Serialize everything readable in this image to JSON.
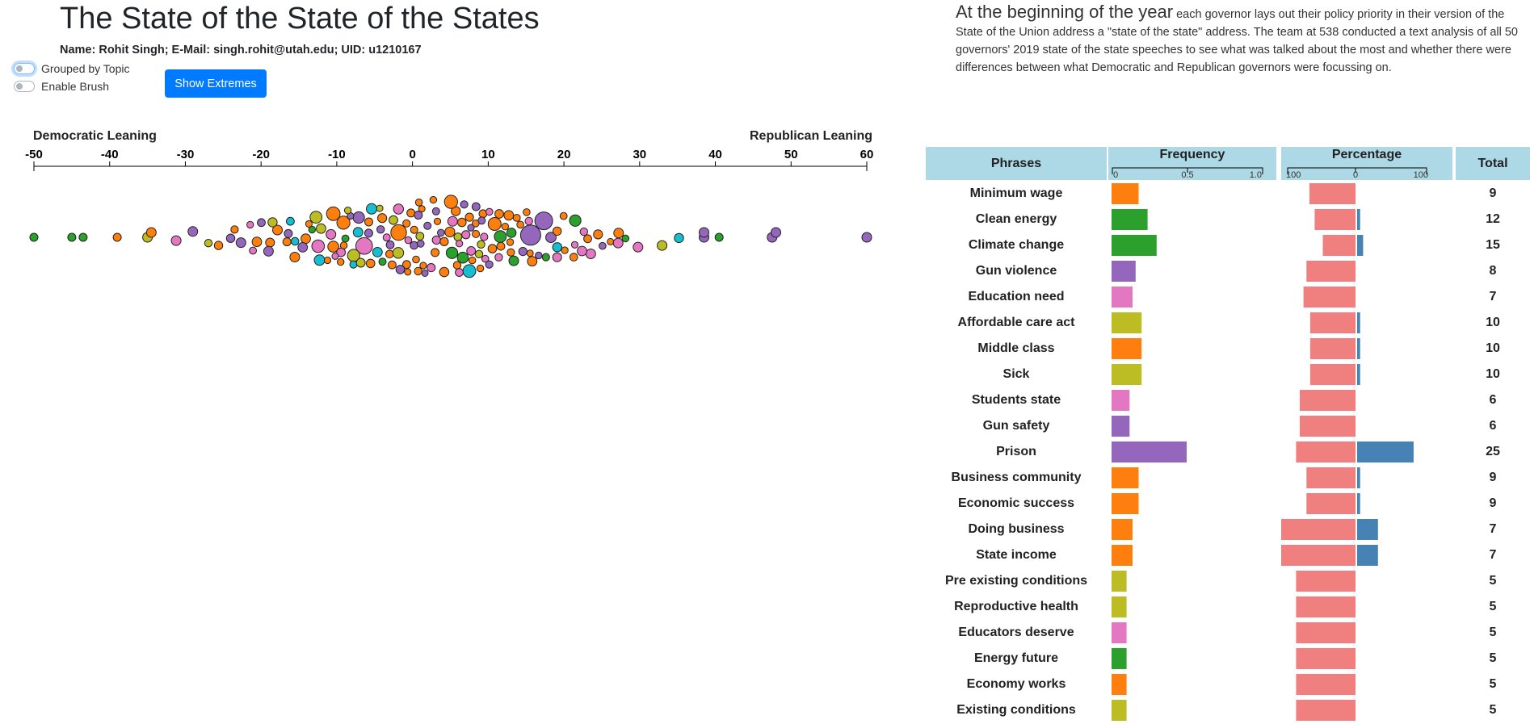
{
  "header": {
    "title": "The State of the State of the States",
    "author": "Name: Rohit Singh; E-Mail: singh.rohit@utah.edu; UID: u1210167"
  },
  "controls": {
    "grouped_label": "Grouped by Topic",
    "brush_label": "Enable Brush",
    "extremes_label": "Show Extremes"
  },
  "intro": {
    "lead": "At the beginning of the year",
    "body": " each governor lays out their policy priority in their version of the State of the Union address a \"state of the state\" address. The team at 538 conducted a text analysis of all 50 governors' 2019 state of the state speeches to see what was talked about the most and whether there were differences between what Democratic and Republican governors were focussing on."
  },
  "colors": {
    "orange": "#ff7f0e",
    "green": "#2ca02c",
    "purple": "#9467bd",
    "pink": "#e377c2",
    "olive": "#bcbd22",
    "cyan": "#17becf",
    "dem_bar": "#f08080",
    "rep_bar": "#4682b4",
    "header_bg": "#add8e6",
    "button": "#007bff"
  },
  "chart_data": [
    {
      "type": "scatter",
      "subtype": "beeswarm",
      "left_label": "Democratic Leaning",
      "right_label": "Republican Leaning",
      "xlim": [
        -50,
        60
      ],
      "ticks": [
        -50,
        -40,
        -30,
        -20,
        -10,
        0,
        10,
        20,
        30,
        40,
        50,
        60
      ],
      "points": [
        {
          "x": -50,
          "category": "green"
        },
        {
          "x": -45,
          "category": "green"
        },
        {
          "x": -43.5,
          "category": "green"
        },
        {
          "x": -39,
          "category": "orange"
        },
        {
          "x": -35,
          "category": "olive"
        },
        {
          "x": -34.5,
          "category": "orange"
        },
        {
          "x": 38.5,
          "category": "purple"
        },
        {
          "x": 38.5,
          "category": "purple"
        },
        {
          "x": 40.5,
          "category": "green"
        },
        {
          "x": 47.5,
          "category": "purple"
        },
        {
          "x": 48,
          "category": "purple"
        },
        {
          "x": 60,
          "category": "purple"
        }
      ]
    },
    {
      "type": "bar",
      "subtype": "table",
      "columns": [
        "Phrases",
        "Frequency",
        "Percentage",
        "Total"
      ],
      "frequency_ticks": [
        "0",
        "0.5",
        "1.0"
      ],
      "percentage_ticks": [
        "100",
        "0",
        "100"
      ],
      "rows": [
        {
          "phrase": "Minimum wage",
          "category": "orange",
          "frequency": 0.18,
          "dem_pct": 62,
          "rep_pct": 0,
          "total": 9
        },
        {
          "phrase": "Clean energy",
          "category": "green",
          "frequency": 0.24,
          "dem_pct": 55,
          "rep_pct": 4,
          "total": 12
        },
        {
          "phrase": "Climate change",
          "category": "green",
          "frequency": 0.3,
          "dem_pct": 44,
          "rep_pct": 8,
          "total": 15
        },
        {
          "phrase": "Gun violence",
          "category": "purple",
          "frequency": 0.16,
          "dem_pct": 66,
          "rep_pct": 0,
          "total": 8
        },
        {
          "phrase": "Education need",
          "category": "pink",
          "frequency": 0.14,
          "dem_pct": 70,
          "rep_pct": 0,
          "total": 7
        },
        {
          "phrase": "Affordable care act",
          "category": "olive",
          "frequency": 0.2,
          "dem_pct": 61,
          "rep_pct": 4,
          "total": 10
        },
        {
          "phrase": "Middle class",
          "category": "orange",
          "frequency": 0.2,
          "dem_pct": 61,
          "rep_pct": 4,
          "total": 10
        },
        {
          "phrase": "Sick",
          "category": "olive",
          "frequency": 0.2,
          "dem_pct": 61,
          "rep_pct": 4,
          "total": 10
        },
        {
          "phrase": "Students state",
          "category": "pink",
          "frequency": 0.12,
          "dem_pct": 75,
          "rep_pct": 0,
          "total": 6
        },
        {
          "phrase": "Gun safety",
          "category": "purple",
          "frequency": 0.12,
          "dem_pct": 75,
          "rep_pct": 0,
          "total": 6
        },
        {
          "phrase": "Prison",
          "category": "purple",
          "frequency": 0.5,
          "dem_pct": 80,
          "rep_pct": 76,
          "total": 25
        },
        {
          "phrase": "Business community",
          "category": "orange",
          "frequency": 0.18,
          "dem_pct": 66,
          "rep_pct": 4,
          "total": 9
        },
        {
          "phrase": "Economic success",
          "category": "orange",
          "frequency": 0.18,
          "dem_pct": 66,
          "rep_pct": 4,
          "total": 9
        },
        {
          "phrase": "Doing business",
          "category": "orange",
          "frequency": 0.14,
          "dem_pct": 100,
          "rep_pct": 28,
          "total": 7
        },
        {
          "phrase": "State income",
          "category": "orange",
          "frequency": 0.14,
          "dem_pct": 100,
          "rep_pct": 28,
          "total": 7
        },
        {
          "phrase": "Pre existing conditions",
          "category": "olive",
          "frequency": 0.1,
          "dem_pct": 80,
          "rep_pct": 0,
          "total": 5
        },
        {
          "phrase": "Reproductive health",
          "category": "olive",
          "frequency": 0.1,
          "dem_pct": 80,
          "rep_pct": 0,
          "total": 5
        },
        {
          "phrase": "Educators deserve",
          "category": "pink",
          "frequency": 0.1,
          "dem_pct": 80,
          "rep_pct": 0,
          "total": 5
        },
        {
          "phrase": "Energy future",
          "category": "green",
          "frequency": 0.1,
          "dem_pct": 80,
          "rep_pct": 0,
          "total": 5
        },
        {
          "phrase": "Economy works",
          "category": "orange",
          "frequency": 0.1,
          "dem_pct": 80,
          "rep_pct": 0,
          "total": 5
        },
        {
          "phrase": "Existing conditions",
          "category": "olive",
          "frequency": 0.1,
          "dem_pct": 80,
          "rep_pct": 0,
          "total": 5
        }
      ]
    }
  ]
}
